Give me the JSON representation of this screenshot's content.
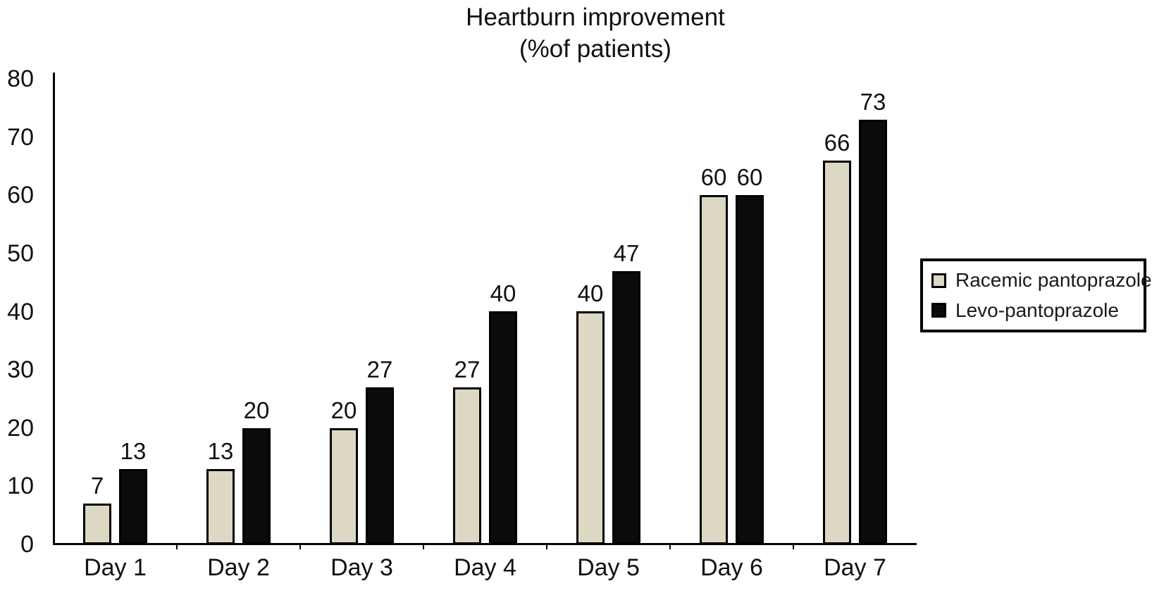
{
  "chart_data": {
    "type": "bar",
    "title": "Heartburn improvement",
    "subtitle": "(%of patients)",
    "categories": [
      "Day 1",
      "Day 2",
      "Day 3",
      "Day 4",
      "Day 5",
      "Day 6",
      "Day 7"
    ],
    "series": [
      {
        "name": "Racemic pantoprazole",
        "color": "#ddd8c3",
        "values": [
          7,
          13,
          20,
          27,
          40,
          60,
          66
        ]
      },
      {
        "name": "Levo-pantoprazole",
        "color": "#0b0b0b",
        "values": [
          13,
          20,
          27,
          40,
          47,
          60,
          73
        ]
      }
    ],
    "y_axis": {
      "min": 0,
      "max": 80,
      "step": 10,
      "tick_labels": [
        "0",
        "10",
        "20",
        "30",
        "40",
        "50",
        "60",
        "70",
        "80"
      ]
    },
    "value_labels_shown": true,
    "grid": false,
    "legend_position": "right",
    "axis_color": "#000000",
    "background_color": "#ffffff"
  }
}
